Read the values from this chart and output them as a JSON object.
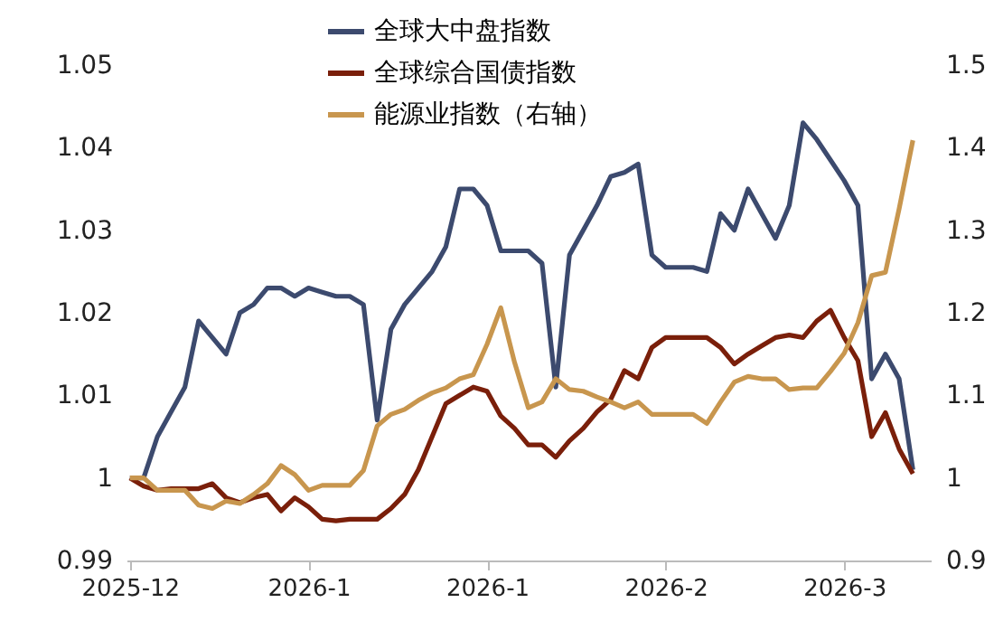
{
  "chart_data": {
    "type": "line",
    "categories": [
      "2025-12",
      null,
      null,
      null,
      null,
      null,
      null,
      null,
      null,
      null,
      null,
      null,
      null,
      "2026-1",
      null,
      null,
      null,
      null,
      null,
      null,
      null,
      null,
      null,
      null,
      null,
      null,
      "2026-1",
      null,
      null,
      null,
      null,
      null,
      null,
      null,
      null,
      null,
      null,
      null,
      null,
      "2026-2",
      null,
      null,
      null,
      null,
      null,
      null,
      null,
      null,
      null,
      null,
      null,
      null,
      "2026-3",
      null,
      null,
      null,
      null,
      null
    ],
    "series": [
      {
        "name": "全球大中盘指数",
        "color": "#3c4a6e",
        "values": [
          1.0,
          1.0,
          1.005,
          1.008,
          1.011,
          1.019,
          1.017,
          1.015,
          1.02,
          1.021,
          1.023,
          1.023,
          1.022,
          1.023,
          1.0225,
          1.022,
          1.022,
          1.021,
          1.007,
          1.018,
          1.021,
          1.023,
          1.025,
          1.028,
          1.035,
          1.035,
          1.033,
          1.0275,
          1.0275,
          1.0275,
          1.026,
          1.011,
          1.027,
          1.03,
          1.033,
          1.0365,
          1.037,
          1.038,
          1.027,
          1.0255,
          1.0255,
          1.0255,
          1.025,
          1.032,
          1.03,
          1.035,
          1.032,
          1.029,
          1.033,
          1.043,
          1.041,
          1.0385,
          1.036,
          1.033,
          1.012,
          1.015,
          1.012,
          1.001
        ]
      },
      {
        "name": "全球综合国债指数",
        "color": "#7a1f0a",
        "values": [
          1.0,
          0.999,
          0.9985,
          0.9987,
          0.9987,
          0.9987,
          0.9993,
          0.9976,
          0.997,
          0.9976,
          0.998,
          0.996,
          0.9976,
          0.9965,
          0.995,
          0.9948,
          0.995,
          0.995,
          0.995,
          0.9963,
          0.998,
          1.001,
          1.005,
          1.009,
          1.01,
          1.011,
          1.0105,
          1.0075,
          1.006,
          1.004,
          1.004,
          1.0025,
          1.0045,
          1.006,
          1.008,
          1.0095,
          1.013,
          1.012,
          1.0158,
          1.017,
          1.017,
          1.017,
          1.017,
          1.0158,
          1.0138,
          1.015,
          1.016,
          1.017,
          1.0173,
          1.017,
          1.019,
          1.0203,
          1.017,
          1.0142,
          1.005,
          1.0079,
          1.0035,
          1.0005
        ]
      },
      {
        "name": "能源业指数（右轴）",
        "color": "#c8964e",
        "axis": "y2",
        "values": [
          1.0,
          1.0,
          0.985,
          0.985,
          0.985,
          0.967,
          0.963,
          0.972,
          0.969,
          0.98,
          0.993,
          1.015,
          1.004,
          0.985,
          0.991,
          0.991,
          0.991,
          1.009,
          1.063,
          1.077,
          1.083,
          1.094,
          1.103,
          1.109,
          1.12,
          1.125,
          1.162,
          1.206,
          1.14,
          1.085,
          1.092,
          1.12,
          1.107,
          1.105,
          1.098,
          1.092,
          1.085,
          1.092,
          1.077,
          1.077,
          1.077,
          1.077,
          1.066,
          1.092,
          1.116,
          1.123,
          1.12,
          1.12,
          1.107,
          1.109,
          1.109,
          1.129,
          1.151,
          1.188,
          1.245,
          1.249,
          1.326,
          1.409
        ]
      }
    ],
    "ylim": [
      0.99,
      1.05
    ],
    "yticks": [
      0.99,
      1,
      1.01,
      1.02,
      1.03,
      1.04,
      1.05
    ],
    "y2lim": [
      0.9,
      1.5
    ],
    "y2ticks": [
      0.9,
      1,
      1.1,
      1.2,
      1.3,
      1.4,
      1.5
    ],
    "legend": "top",
    "grid": false,
    "line_style": "solid",
    "marker": "none"
  }
}
